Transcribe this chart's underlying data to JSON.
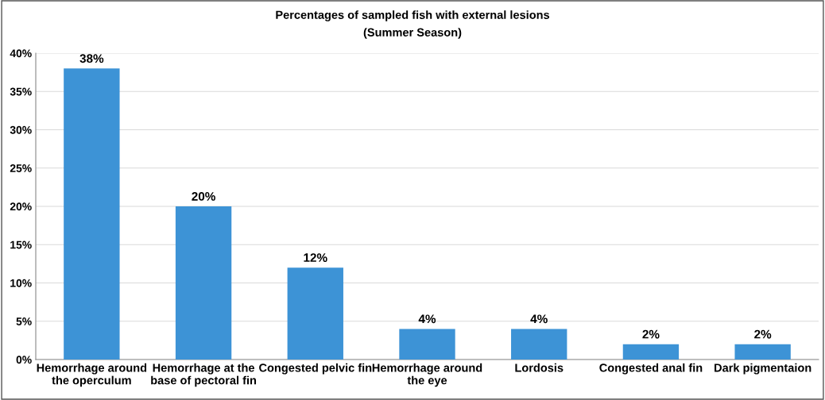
{
  "chart_data": {
    "type": "bar",
    "title": "Percentages of sampled fish with external lesions",
    "subtitle": "(Summer Season)",
    "categories": [
      "Hemorrhage around\nthe operculum",
      "Hemorrhage at the\nbase of pectoral fin",
      "Congested pelvic fin",
      "Hemorrhage around\nthe eye",
      "Lordosis",
      "Congested anal fin",
      "Dark pigmentaion"
    ],
    "values": [
      38,
      20,
      12,
      4,
      4,
      2,
      2
    ],
    "value_labels": [
      "38%",
      "20%",
      "12%",
      "4%",
      "4%",
      "2%",
      "2%"
    ],
    "color": "#3d93d6",
    "ylim": [
      0,
      40
    ],
    "yticks": [
      {
        "value": 0,
        "label": "0%"
      },
      {
        "value": 5,
        "label": "5%"
      },
      {
        "value": 10,
        "label": "10%"
      },
      {
        "value": 15,
        "label": "15%"
      },
      {
        "value": 20,
        "label": "20%"
      },
      {
        "value": 25,
        "label": "25%"
      },
      {
        "value": 30,
        "label": "30%"
      },
      {
        "value": 35,
        "label": "35%"
      },
      {
        "value": 40,
        "label": "40%"
      }
    ],
    "grid": "y"
  }
}
